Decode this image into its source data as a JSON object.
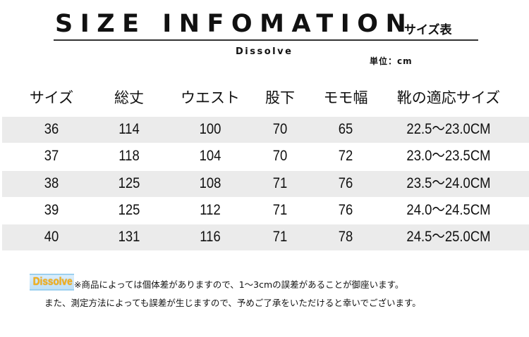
{
  "header": {
    "title": "SIZE INFOMATION",
    "title_suffix": "-サイズ表",
    "brand": "Dissolve",
    "unit": "単位：cm"
  },
  "table": {
    "columns": [
      "サイズ",
      "総丈",
      "ウエスト",
      "股下",
      "モモ幅",
      "靴の適応サイズ"
    ],
    "rows": [
      [
        "36",
        "114",
        "100",
        "70",
        "65",
        "22.5～23.0CM"
      ],
      [
        "37",
        "118",
        "104",
        "70",
        "72",
        "23.0～23.5CM"
      ],
      [
        "38",
        "125",
        "108",
        "71",
        "76",
        "23.5～24.0CM"
      ],
      [
        "39",
        "125",
        "112",
        "71",
        "76",
        "24.0～24.5CM"
      ],
      [
        "40",
        "131",
        "116",
        "71",
        "78",
        "24.5～25.0CM"
      ]
    ],
    "stripe_color": "#ebebeb"
  },
  "footer": {
    "logo_text": "Dissolve",
    "note_line1": "※商品によっては個体差がありますので、1～3cmの誤差があることが御座います。",
    "note_line2": "また、測定方法によっても誤差が生じますので、予めご了承をいただけると幸いでございます。"
  }
}
